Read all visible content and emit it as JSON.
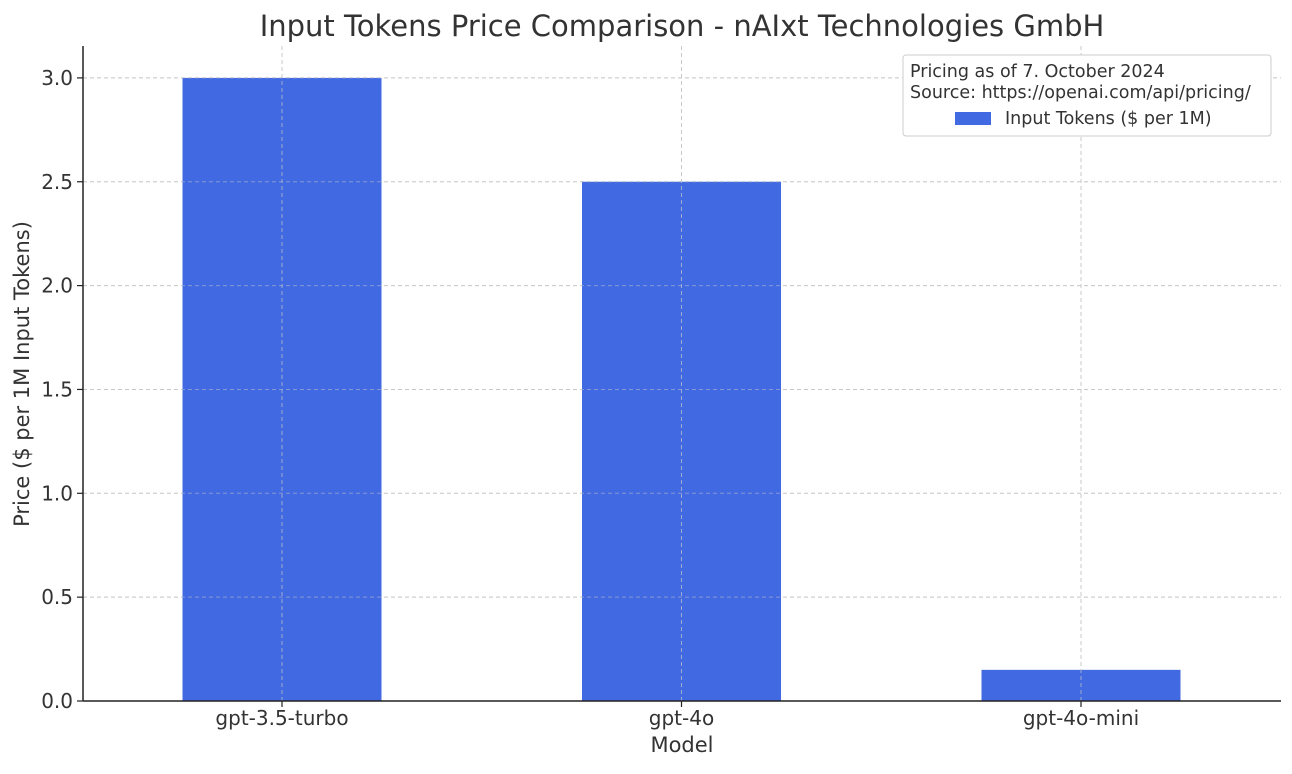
{
  "chart_data": {
    "type": "bar",
    "title": "Input Tokens Price Comparison - nAIxt Technologies GmbH",
    "xlabel": "Model",
    "ylabel": "Price ($ per 1M Input Tokens)",
    "categories": [
      "gpt-3.5-turbo",
      "gpt-4o",
      "gpt-4o-mini"
    ],
    "series": [
      {
        "name": "Input Tokens ($ per 1M)",
        "values": [
          3.0,
          2.5,
          0.15
        ],
        "color": "#4169e1"
      }
    ],
    "ylim": [
      0,
      3.15
    ],
    "yticks": [
      "0.0",
      "0.5",
      "1.0",
      "1.5",
      "2.0",
      "2.5",
      "3.0"
    ],
    "grid": true,
    "legend": {
      "placement": "top-right",
      "title_lines": [
        "Pricing as of 7. October 2024",
        "Source: https://openai.com/api/pricing/"
      ]
    }
  }
}
